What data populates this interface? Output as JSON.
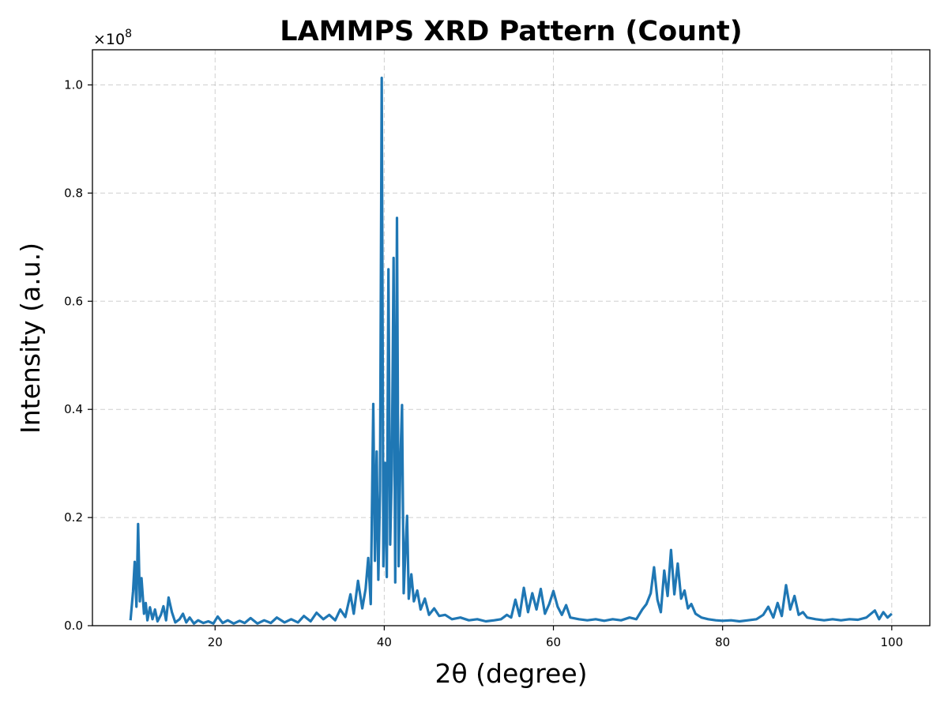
{
  "chart_data": {
    "type": "line",
    "title": "LAMMPS XRD Pattern (Count)",
    "xlabel": "2θ (degree)",
    "ylabel": "Intensity (a.u.)",
    "y_multiplier_label": "×10",
    "y_multiplier_exp": "8",
    "xlim": [
      5.5,
      104.5
    ],
    "ylim": [
      0,
      1.065
    ],
    "x_ticks": [
      20,
      40,
      60,
      80,
      100
    ],
    "x_tick_labels": [
      "20",
      "40",
      "60",
      "80",
      "100"
    ],
    "y_ticks": [
      0,
      0.2,
      0.4,
      0.6,
      0.8,
      1.0
    ],
    "y_tick_labels": [
      "0.0",
      "0.2",
      "0.4",
      "0.6",
      "0.8",
      "1.0"
    ],
    "grid": true,
    "series": [
      {
        "color": "#1f77b4",
        "x": [
          10.0,
          10.3,
          10.5,
          10.7,
          10.9,
          11.1,
          11.3,
          11.6,
          11.8,
          12.0,
          12.3,
          12.6,
          12.9,
          13.2,
          13.6,
          13.9,
          14.2,
          14.5,
          14.9,
          15.3,
          15.8,
          16.2,
          16.6,
          17.0,
          17.5,
          18.0,
          18.6,
          19.2,
          19.8,
          20.3,
          20.9,
          21.5,
          22.2,
          22.9,
          23.5,
          24.2,
          25.0,
          25.8,
          26.6,
          27.3,
          28.2,
          29.0,
          29.8,
          30.5,
          31.3,
          32.0,
          32.8,
          33.5,
          34.2,
          34.8,
          35.4,
          36.0,
          36.4,
          36.9,
          37.4,
          37.8,
          38.1,
          38.4,
          38.7,
          38.9,
          39.1,
          39.3,
          39.5,
          39.7,
          39.9,
          40.1,
          40.3,
          40.5,
          40.7,
          40.9,
          41.1,
          41.3,
          41.5,
          41.7,
          41.9,
          42.1,
          42.3,
          42.5,
          42.7,
          42.9,
          43.2,
          43.5,
          43.9,
          44.3,
          44.8,
          45.3,
          45.9,
          46.5,
          47.2,
          48.0,
          49.0,
          50.0,
          51.0,
          52.0,
          53.0,
          53.8,
          54.5,
          55.0,
          55.5,
          56.0,
          56.5,
          57.0,
          57.5,
          58.0,
          58.5,
          59.0,
          59.5,
          60.0,
          60.5,
          61.0,
          61.5,
          62.0,
          63.0,
          64.0,
          65.0,
          66.0,
          67.0,
          68.0,
          69.0,
          69.8,
          70.5,
          71.0,
          71.5,
          71.9,
          72.3,
          72.7,
          73.1,
          73.5,
          73.9,
          74.3,
          74.7,
          75.1,
          75.5,
          75.9,
          76.3,
          76.8,
          77.5,
          78.3,
          79.2,
          80.0,
          81.0,
          82.0,
          83.0,
          84.0,
          84.8,
          85.4,
          86.0,
          86.5,
          87.0,
          87.5,
          88.0,
          88.5,
          89.0,
          89.5,
          90.0,
          91.0,
          92.0,
          93.0,
          94.0,
          95.0,
          96.0,
          97.0,
          98.0,
          98.5,
          99.0,
          99.5,
          100.0
        ],
        "y": [
          0.01,
          0.063,
          0.118,
          0.035,
          0.188,
          0.045,
          0.088,
          0.022,
          0.042,
          0.01,
          0.034,
          0.012,
          0.03,
          0.008,
          0.02,
          0.036,
          0.01,
          0.052,
          0.025,
          0.006,
          0.012,
          0.022,
          0.006,
          0.015,
          0.004,
          0.01,
          0.005,
          0.008,
          0.004,
          0.017,
          0.005,
          0.01,
          0.004,
          0.009,
          0.005,
          0.014,
          0.004,
          0.01,
          0.005,
          0.015,
          0.006,
          0.012,
          0.006,
          0.018,
          0.008,
          0.024,
          0.012,
          0.02,
          0.01,
          0.03,
          0.016,
          0.058,
          0.022,
          0.083,
          0.032,
          0.068,
          0.125,
          0.04,
          0.41,
          0.12,
          0.322,
          0.085,
          0.25,
          1.013,
          0.11,
          0.301,
          0.09,
          0.659,
          0.15,
          0.29,
          0.68,
          0.08,
          0.754,
          0.11,
          0.3,
          0.408,
          0.06,
          0.14,
          0.203,
          0.05,
          0.095,
          0.045,
          0.065,
          0.03,
          0.05,
          0.02,
          0.032,
          0.018,
          0.02,
          0.012,
          0.015,
          0.01,
          0.012,
          0.008,
          0.01,
          0.012,
          0.02,
          0.015,
          0.048,
          0.018,
          0.07,
          0.025,
          0.06,
          0.03,
          0.068,
          0.022,
          0.04,
          0.064,
          0.035,
          0.02,
          0.038,
          0.015,
          0.012,
          0.01,
          0.012,
          0.009,
          0.012,
          0.01,
          0.015,
          0.012,
          0.03,
          0.04,
          0.06,
          0.108,
          0.048,
          0.025,
          0.102,
          0.055,
          0.14,
          0.058,
          0.115,
          0.05,
          0.065,
          0.032,
          0.04,
          0.022,
          0.015,
          0.012,
          0.01,
          0.009,
          0.01,
          0.008,
          0.01,
          0.012,
          0.02,
          0.035,
          0.015,
          0.042,
          0.018,
          0.075,
          0.03,
          0.055,
          0.02,
          0.025,
          0.015,
          0.012,
          0.01,
          0.012,
          0.01,
          0.012,
          0.011,
          0.015,
          0.028,
          0.012,
          0.025,
          0.015,
          0.022
        ]
      }
    ]
  }
}
